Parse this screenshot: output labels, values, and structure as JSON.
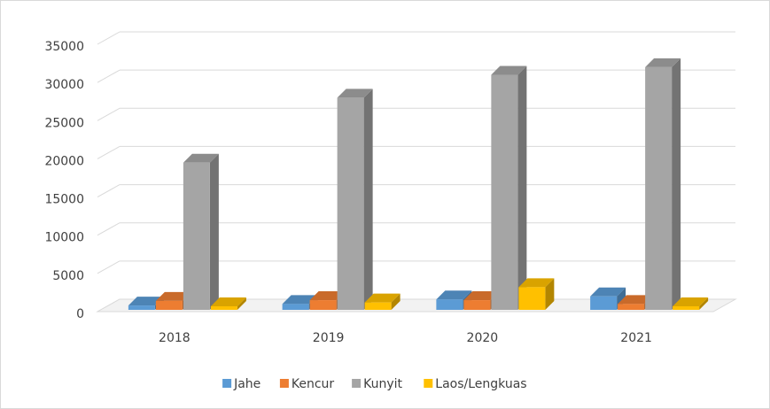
{
  "chart_data": {
    "type": "bar3d",
    "categories": [
      "2018",
      "2019",
      "2020",
      "2021"
    ],
    "series": [
      {
        "name": "Jahe",
        "color": "#5b9bd5",
        "values": [
          800,
          1000,
          1600,
          2000
        ]
      },
      {
        "name": "Kencur",
        "color": "#ed7d31",
        "values": [
          1400,
          1500,
          1500,
          1000
        ]
      },
      {
        "name": "Kunyit",
        "color": "#a5a5a5",
        "values": [
          19500,
          28000,
          31000,
          32000
        ]
      },
      {
        "name": "Laos/Lengkuas",
        "color": "#ffc000",
        "values": [
          700,
          1200,
          3200,
          700
        ]
      }
    ],
    "ylim": [
      0,
      35000
    ],
    "yticks": [
      0,
      5000,
      10000,
      15000,
      20000,
      25000,
      30000,
      35000
    ],
    "grid": true,
    "legend": "bottom"
  }
}
